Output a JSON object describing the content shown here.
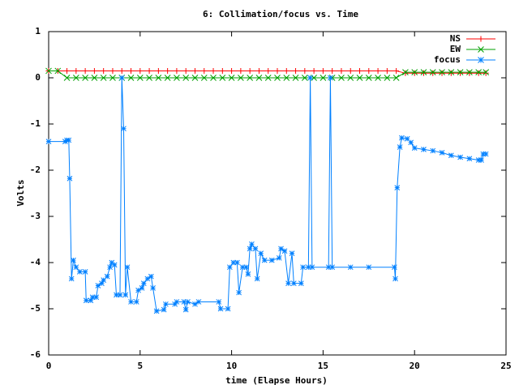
{
  "chart_data": {
    "type": "line",
    "title": "6: Collimation/focus vs. Time",
    "xlabel": "time (Elapse Hours)",
    "ylabel": "Volts",
    "xlim": [
      0,
      25
    ],
    "xticks": [
      0,
      5,
      10,
      15,
      20,
      25
    ],
    "ylim": [
      -6,
      1
    ],
    "yticks": [
      -6,
      -5,
      -4,
      -3,
      -2,
      -1,
      0,
      1
    ],
    "grid": false,
    "legend": "top-right",
    "series": [
      {
        "name": "NS",
        "color": "#ff0000",
        "marker": "+",
        "x": [
          0,
          0.5,
          1,
          1.5,
          2,
          2.5,
          3,
          3.5,
          4,
          4.5,
          5,
          5.5,
          6,
          6.5,
          7,
          7.5,
          8,
          8.5,
          9,
          9.5,
          10,
          10.5,
          11,
          11.5,
          12,
          12.5,
          13,
          13.5,
          14,
          14.5,
          15,
          15.5,
          16,
          16.5,
          17,
          17.5,
          18,
          18.5,
          19,
          19.5,
          20,
          20.5,
          21,
          21.5,
          22,
          22.5,
          23,
          23.5,
          23.9
        ],
        "values": [
          0.15,
          0.15,
          0.15,
          0.15,
          0.15,
          0.15,
          0.15,
          0.15,
          0.15,
          0.15,
          0.15,
          0.15,
          0.15,
          0.15,
          0.15,
          0.15,
          0.15,
          0.15,
          0.15,
          0.15,
          0.15,
          0.15,
          0.15,
          0.15,
          0.15,
          0.15,
          0.15,
          0.15,
          0.15,
          0.15,
          0.15,
          0.15,
          0.15,
          0.15,
          0.15,
          0.15,
          0.15,
          0.15,
          0.15,
          0.1,
          0.1,
          0.1,
          0.1,
          0.1,
          0.1,
          0.1,
          0.1,
          0.1,
          0.1
        ]
      },
      {
        "name": "EW",
        "color": "#00a000",
        "marker": "x",
        "x": [
          0,
          0.5,
          1,
          1.5,
          2,
          2.5,
          3,
          3.5,
          4,
          4.5,
          5,
          5.5,
          6,
          6.5,
          7,
          7.5,
          8,
          8.5,
          9,
          9.5,
          10,
          10.5,
          11,
          11.5,
          12,
          12.5,
          13,
          13.5,
          14,
          14.5,
          15,
          15.5,
          16,
          16.5,
          17,
          17.5,
          18,
          18.5,
          19,
          19.5,
          20,
          20.5,
          21,
          21.5,
          22,
          22.5,
          23,
          23.5,
          23.9
        ],
        "values": [
          0.15,
          0.15,
          0,
          0,
          0,
          0,
          0,
          0,
          0,
          0,
          0,
          0,
          0,
          0,
          0,
          0,
          0,
          0,
          0,
          0,
          0,
          0,
          0,
          0,
          0,
          0,
          0,
          0,
          0,
          0,
          0,
          0,
          0,
          0,
          0,
          0,
          0,
          0,
          0,
          0.12,
          0.12,
          0.12,
          0.12,
          0.12,
          0.12,
          0.12,
          0.12,
          0.12,
          0.12
        ]
      },
      {
        "name": "focus",
        "color": "#0080ff",
        "marker": "*",
        "x": [
          0,
          0.9,
          1.0,
          1.1,
          1.15,
          1.25,
          1.35,
          1.5,
          1.7,
          2.0,
          2.05,
          2.3,
          2.4,
          2.6,
          2.7,
          2.9,
          3.0,
          3.2,
          3.35,
          3.45,
          3.6,
          3.7,
          3.9,
          4.0,
          4.1,
          4.2,
          4.3,
          4.5,
          4.8,
          4.9,
          5.1,
          5.2,
          5.4,
          5.6,
          5.7,
          5.9,
          6.3,
          6.4,
          6.9,
          7.0,
          7.4,
          7.5,
          7.6,
          8.0,
          8.2,
          9.3,
          9.4,
          9.8,
          9.9,
          10.1,
          10.3,
          10.4,
          10.6,
          10.8,
          10.9,
          11.0,
          11.1,
          11.3,
          11.4,
          11.6,
          11.8,
          12.2,
          12.6,
          12.7,
          12.9,
          13.1,
          13.3,
          13.4,
          13.8,
          13.9,
          14.2,
          14.3,
          14.4,
          15.3,
          15.4,
          15.5,
          16.5,
          17.5,
          18.9,
          18.95,
          19.05,
          19.2,
          19.3,
          19.6,
          19.8,
          20.0,
          20.5,
          21.0,
          21.5,
          22.0,
          22.5,
          23.0,
          23.5,
          23.65,
          23.75,
          23.9
        ],
        "values": [
          -1.38,
          -1.38,
          -1.35,
          -1.35,
          -2.18,
          -4.35,
          -3.95,
          -4.1,
          -4.2,
          -4.2,
          -4.82,
          -4.82,
          -4.75,
          -4.75,
          -4.5,
          -4.45,
          -4.38,
          -4.3,
          -4.1,
          -4.0,
          -4.05,
          -4.7,
          -4.7,
          0.0,
          -1.1,
          -4.7,
          -4.1,
          -4.85,
          -4.85,
          -4.6,
          -4.55,
          -4.45,
          -4.35,
          -4.3,
          -4.55,
          -5.05,
          -5.02,
          -4.9,
          -4.9,
          -4.85,
          -4.85,
          -5.02,
          -4.85,
          -4.9,
          -4.85,
          -4.85,
          -5.0,
          -5.0,
          -4.1,
          -4.0,
          -4.0,
          -4.65,
          -4.1,
          -4.1,
          -4.25,
          -3.7,
          -3.6,
          -3.7,
          -4.35,
          -3.8,
          -3.95,
          -3.95,
          -3.9,
          -3.7,
          -3.75,
          -4.45,
          -3.8,
          -4.45,
          -4.45,
          -4.1,
          -4.1,
          0.0,
          -4.1,
          -4.1,
          0.0,
          -4.1,
          -4.1,
          -4.1,
          -4.1,
          -4.35,
          -2.38,
          -1.5,
          -1.3,
          -1.32,
          -1.4,
          -1.52,
          -1.55,
          -1.58,
          -1.62,
          -1.68,
          -1.72,
          -1.75,
          -1.78,
          -1.78,
          -1.65,
          -1.65
        ]
      }
    ]
  }
}
